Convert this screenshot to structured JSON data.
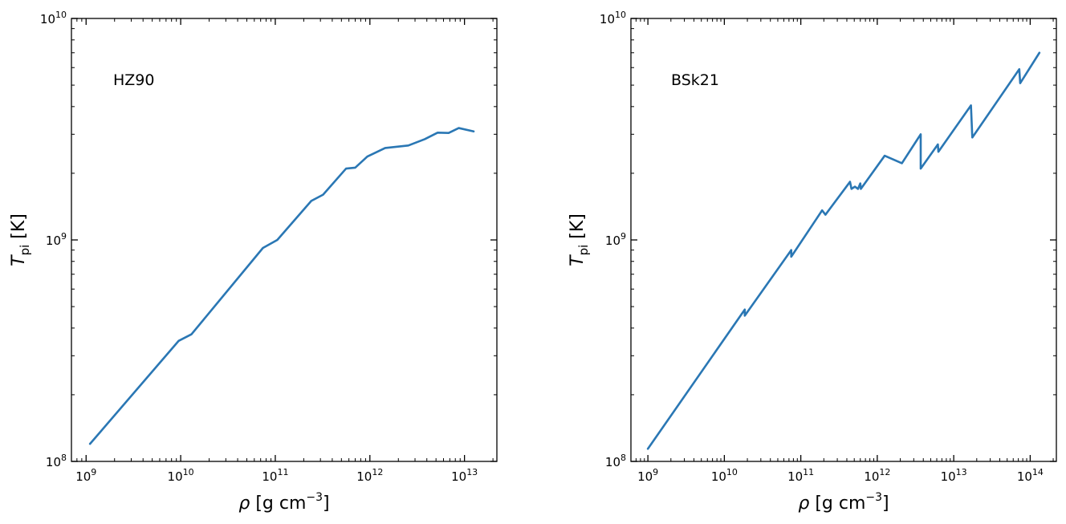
{
  "chart_data": [
    {
      "type": "line",
      "annotation": "HZ90",
      "xlabel": "ρ [g cm⁻³]",
      "ylabel": "T_pi [K]",
      "x_scale": "log",
      "y_scale": "log",
      "xlim": [
        700000000.0,
        22000000000000.0
      ],
      "ylim": [
        100000000.0,
        10000000000.0
      ],
      "xticks": [
        {
          "base": "10",
          "exp": "9",
          "value": 1000000000.0
        },
        {
          "base": "10",
          "exp": "10",
          "value": 10000000000.0
        },
        {
          "base": "10",
          "exp": "11",
          "value": 100000000000.0
        },
        {
          "base": "10",
          "exp": "12",
          "value": 1000000000000.0
        },
        {
          "base": "10",
          "exp": "13",
          "value": 10000000000000.0
        }
      ],
      "yticks": [
        {
          "base": "10",
          "exp": "8",
          "value": 100000000.0
        },
        {
          "base": "10",
          "exp": "9",
          "value": 1000000000.0
        },
        {
          "base": "10",
          "exp": "10",
          "value": 10000000000.0
        }
      ],
      "grid": false,
      "color": "#2a77b4",
      "series": [
        {
          "x": [
            1100000000.0,
            9500000000.0,
            13000000000.0,
            74000000000.0,
            105000000000.0,
            240000000000.0,
            320000000000.0,
            560000000000.0,
            700000000000.0,
            940000000000.0,
            1450000000000.0,
            2550000000000.0,
            3800000000000.0,
            5200000000000.0,
            6800000000000.0,
            8700000000000.0,
            12500000000000.0
          ],
          "y": [
            120000000.0,
            350000000.0,
            375000000.0,
            920000000.0,
            1000000000.0,
            1500000000.0,
            1600000000.0,
            2100000000.0,
            2120000000.0,
            2380000000.0,
            2600000000.0,
            2670000000.0,
            2850000000.0,
            3050000000.0,
            3040000000.0,
            3200000000.0,
            3090000000.0
          ]
        }
      ]
    },
    {
      "type": "line",
      "annotation": "BSk21",
      "xlabel": "ρ [g cm⁻³]",
      "ylabel": "T_pi [K]",
      "x_scale": "log",
      "y_scale": "log",
      "xlim": [
        600000000.0,
        220000000000000.0
      ],
      "ylim": [
        100000000.0,
        10000000000.0
      ],
      "xticks": [
        {
          "base": "10",
          "exp": "9",
          "value": 1000000000.0
        },
        {
          "base": "10",
          "exp": "10",
          "value": 10000000000.0
        },
        {
          "base": "10",
          "exp": "11",
          "value": 100000000000.0
        },
        {
          "base": "10",
          "exp": "12",
          "value": 1000000000000.0
        },
        {
          "base": "10",
          "exp": "13",
          "value": 10000000000000.0
        },
        {
          "base": "10",
          "exp": "14",
          "value": 100000000000000.0
        }
      ],
      "yticks": [
        {
          "base": "10",
          "exp": "8",
          "value": 100000000.0
        },
        {
          "base": "10",
          "exp": "9",
          "value": 1000000000.0
        },
        {
          "base": "10",
          "exp": "10",
          "value": 10000000000.0
        }
      ],
      "grid": false,
      "color": "#2a77b4",
      "series": [
        {
          "x": [
            1000000000.0,
            18500000000.0,
            18500000000.0,
            75000000000.0,
            75000000000.0,
            190000000000.0,
            210000000000.0,
            440000000000.0,
            460000000000.0,
            510000000000.0,
            560000000000.0,
            600000000000.0,
            610000000000.0,
            1250000000000.0,
            2100000000000.0,
            3700000000000.0,
            3700000000000.0,
            6200000000000.0,
            6300000000000.0,
            16800000000000.0,
            17500000000000.0,
            72000000000000.0,
            74000000000000.0,
            132000000000000.0
          ],
          "y": [
            114000000.0,
            485000000.0,
            455000000.0,
            900000000.0,
            840000000.0,
            1360000000.0,
            1300000000.0,
            1830000000.0,
            1700000000.0,
            1740000000.0,
            1700000000.0,
            1800000000.0,
            1700000000.0,
            2400000000.0,
            2220000000.0,
            3000000000.0,
            2100000000.0,
            2700000000.0,
            2500000000.0,
            4050000000.0,
            2900000000.0,
            5900000000.0,
            5100000000.0,
            7000000000.0
          ]
        }
      ]
    }
  ]
}
